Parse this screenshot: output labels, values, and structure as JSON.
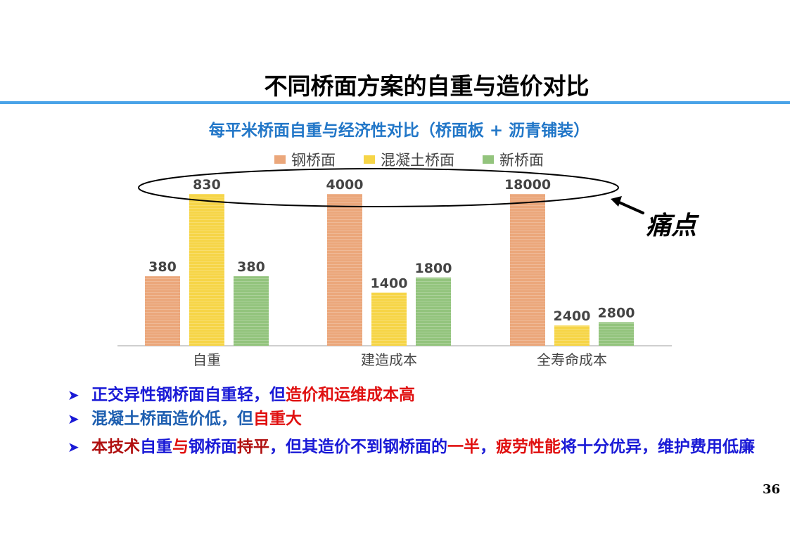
{
  "title": "不同桥面方案的自重与造价对比",
  "chart_data": {
    "type": "bar",
    "subtitle": "每平米桥面自重与经济性对比（桥面板 + 沥青铺装）",
    "categories": [
      "自重",
      "建造成本",
      "全寿命成本"
    ],
    "series": [
      {
        "name": "钢桥面",
        "color": "#eba77b",
        "values": [
          380,
          4000,
          18000
        ]
      },
      {
        "name": "混凝土桥面",
        "color": "#f6d547",
        "values": [
          830,
          1400,
          2400
        ]
      },
      {
        "name": "新桥面",
        "color": "#93c47d",
        "values": [
          380,
          1800,
          2800
        ]
      }
    ],
    "legend_position": "top",
    "grid": false,
    "note": "轴未显示刻度，各组数值为原图数据标签"
  },
  "callout_label": "痛点",
  "bullets": [
    {
      "segments": [
        {
          "text": "正交异性钢桥面自重轻，但",
          "color": "blue"
        },
        {
          "text": "造价和运维成本高",
          "color": "red"
        }
      ]
    },
    {
      "segments": [
        {
          "text": "混凝土桥面造价低，但",
          "color": "steel"
        },
        {
          "text": "自重大",
          "color": "red"
        }
      ]
    },
    {
      "segments": [
        {
          "text": "本技术",
          "color": "darkred"
        },
        {
          "text": "自重",
          "color": "blue"
        },
        {
          "text": "与",
          "color": "red"
        },
        {
          "text": "钢桥面",
          "color": "blue"
        },
        {
          "text": "持平",
          "color": "darkred"
        },
        {
          "text": "，但其造价不到钢桥面的",
          "color": "blue"
        },
        {
          "text": "一半",
          "color": "red"
        },
        {
          "text": "，",
          "color": "blue"
        },
        {
          "text": "疲劳性能",
          "color": "red"
        },
        {
          "text": "将十分优异，维护费用低廉",
          "color": "blue"
        }
      ]
    }
  ],
  "page_number": "36"
}
